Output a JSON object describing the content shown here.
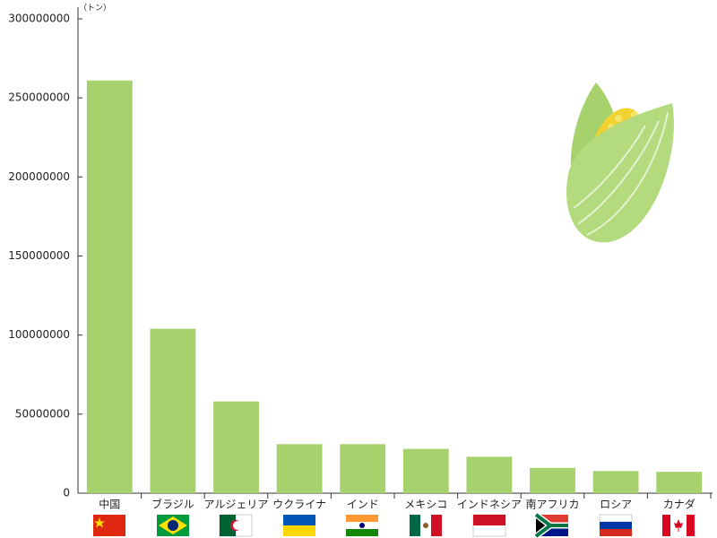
{
  "chart_data": {
    "type": "bar",
    "unit_label": "（トン）",
    "categories": [
      "中国",
      "ブラジル",
      "アルジェリア",
      "ウクライナ",
      "インド",
      "メキシコ",
      "インドネシア",
      "南アフリカ",
      "ロシア",
      "カナダ"
    ],
    "values": [
      261000000,
      104000000,
      58000000,
      31000000,
      31000000,
      28000000,
      23000000,
      16000000,
      14000000,
      13500000
    ],
    "color": "#a6d16c",
    "ylim": [
      0,
      300000000
    ],
    "yticks": [
      0,
      50000000,
      100000000,
      150000000,
      200000000,
      250000000,
      300000000
    ],
    "grid": false
  }
}
